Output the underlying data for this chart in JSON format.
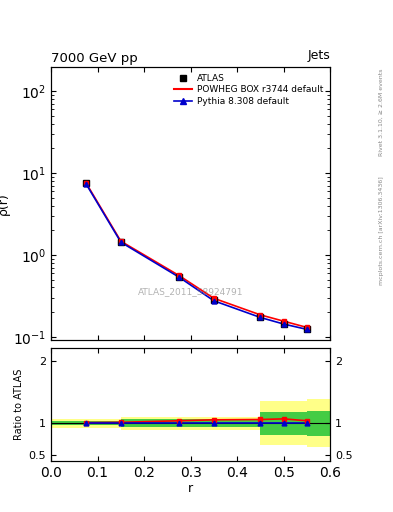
{
  "title": "7000 GeV pp",
  "title_right": "Jets",
  "ylabel_main": "ρ(r)",
  "ylabel_ratio": "Ratio to ATLAS",
  "xlabel": "r",
  "watermark": "ATLAS_2011_S8924791",
  "right_label_top": "Rivet 3.1.10, ≥ 2.6M events",
  "right_label_bottom": "mcplots.cern.ch [arXiv:1306.3436]",
  "x_data": [
    0.075,
    0.15,
    0.275,
    0.35,
    0.45,
    0.5,
    0.55
  ],
  "atlas_y": [
    7.5,
    1.45,
    0.54,
    0.28,
    0.175,
    0.145,
    0.125
  ],
  "powheg_y": [
    7.6,
    1.47,
    0.56,
    0.295,
    0.185,
    0.155,
    0.13
  ],
  "pythia_y": [
    7.4,
    1.43,
    0.535,
    0.275,
    0.172,
    0.143,
    0.123
  ],
  "ratio_x": [
    0.075,
    0.15,
    0.275,
    0.35,
    0.45,
    0.5,
    0.55
  ],
  "ratio_powheg": [
    1.01,
    1.015,
    1.04,
    1.055,
    1.06,
    1.07,
    1.04
  ],
  "ratio_pythia": [
    1.0,
    1.0,
    1.0,
    1.0,
    1.0,
    1.0,
    1.0
  ],
  "xlim": [
    0,
    0.6
  ],
  "ylim_main_log": [
    0.09,
    200
  ],
  "ylim_ratio": [
    0.4,
    2.2
  ],
  "atlas_color": "black",
  "powheg_color": "#ff0000",
  "pythia_color": "#0000cc",
  "yellow_color": "#ffff88",
  "green_color": "#44cc44",
  "legend_entries": [
    "ATLAS",
    "POWHEG BOX r3744 default",
    "Pythia 8.308 default"
  ],
  "band_edges": [
    0.0,
    0.15,
    0.45,
    0.55,
    0.6
  ],
  "yellow_lo": [
    0.93,
    0.9,
    0.65,
    0.62
  ],
  "yellow_hi": [
    1.07,
    1.1,
    1.35,
    1.38
  ],
  "green_lo": [
    0.97,
    0.94,
    0.82,
    0.8
  ],
  "green_hi": [
    1.03,
    1.06,
    1.18,
    1.2
  ]
}
